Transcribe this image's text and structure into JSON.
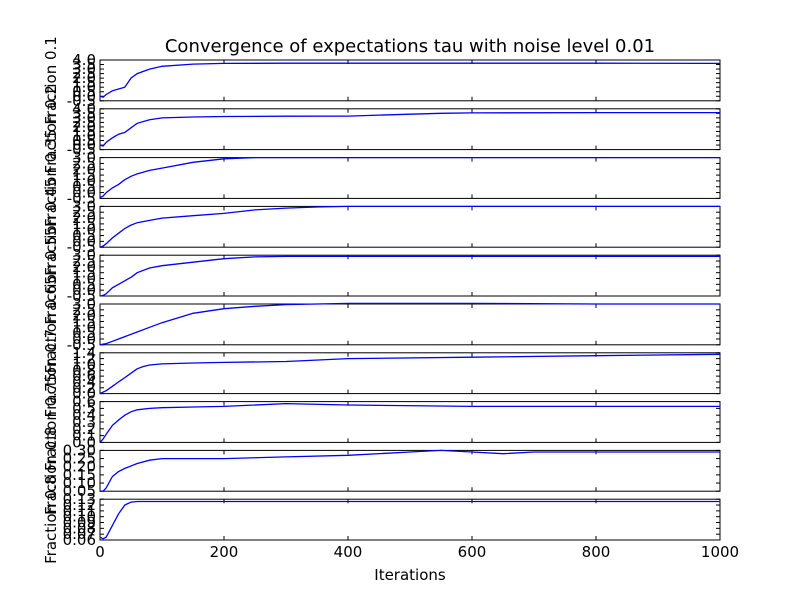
{
  "chart_data": {
    "type": "line",
    "title": "Convergence of expectations tau with noise level 0.01",
    "xlabel": "Iterations",
    "xlim": [
      0,
      1000
    ],
    "xticks": [
      "0",
      "200",
      "400",
      "600",
      "800",
      "1000"
    ],
    "line_color": "#0000ff",
    "grid": false,
    "legend": "none",
    "panels": [
      {
        "ylabel": "Fraction 0.1",
        "ylim": [
          -0.5,
          4.0
        ],
        "yticks": [
          "-0.5",
          "0.0",
          "0.5",
          "1.0",
          "1.5",
          "2.0",
          "2.5",
          "3.0",
          "3.5",
          "4.0"
        ],
        "x": [
          0,
          5,
          10,
          20,
          30,
          40,
          50,
          60,
          80,
          100,
          150,
          200,
          300,
          400,
          600,
          800,
          1000
        ],
        "y": [
          0.0,
          -0.1,
          0.2,
          0.6,
          0.8,
          1.0,
          2.0,
          2.5,
          3.0,
          3.3,
          3.55,
          3.62,
          3.65,
          3.65,
          3.65,
          3.65,
          3.62
        ]
      },
      {
        "ylabel": "Fraction 0.2",
        "ylim": [
          -0.5,
          4.0
        ],
        "yticks": [
          "-0.5",
          "0.0",
          "0.5",
          "1.0",
          "1.5",
          "2.0",
          "2.5",
          "3.0",
          "3.5",
          "4.0"
        ],
        "x": [
          0,
          5,
          10,
          20,
          30,
          40,
          50,
          60,
          80,
          100,
          150,
          200,
          300,
          400,
          450,
          500,
          550,
          600,
          800,
          1000
        ],
        "y": [
          0.0,
          -0.1,
          0.3,
          0.8,
          1.2,
          1.4,
          1.9,
          2.4,
          2.8,
          3.0,
          3.1,
          3.15,
          3.18,
          3.2,
          3.3,
          3.4,
          3.5,
          3.55,
          3.58,
          3.58
        ]
      },
      {
        "ylabel": "Fraction 0.35",
        "ylim": [
          -0.5,
          3.0
        ],
        "yticks": [
          "-0.5",
          "0.0",
          "0.5",
          "1.0",
          "1.5",
          "2.0",
          "2.5",
          "3.0"
        ],
        "x": [
          0,
          5,
          10,
          20,
          30,
          40,
          50,
          60,
          80,
          100,
          150,
          200,
          250,
          300,
          400,
          600,
          800,
          1000
        ],
        "y": [
          -0.4,
          -0.3,
          0.0,
          0.4,
          0.7,
          1.1,
          1.4,
          1.6,
          1.9,
          2.1,
          2.6,
          2.9,
          3.0,
          3.0,
          3.0,
          3.0,
          3.0,
          3.0
        ]
      },
      {
        "ylabel": "Fraction 0.45",
        "ylim": [
          -0.5,
          3.0
        ],
        "yticks": [
          "-0.5",
          "0.0",
          "0.5",
          "1.0",
          "1.5",
          "2.0",
          "2.5",
          "3.0"
        ],
        "x": [
          0,
          5,
          10,
          20,
          30,
          40,
          50,
          60,
          80,
          100,
          150,
          200,
          250,
          300,
          350,
          400,
          600,
          800,
          1000
        ],
        "y": [
          -0.5,
          -0.4,
          -0.2,
          0.3,
          0.7,
          1.1,
          1.4,
          1.6,
          1.8,
          2.0,
          2.2,
          2.4,
          2.7,
          2.85,
          2.95,
          3.0,
          3.0,
          3.0,
          3.0
        ]
      },
      {
        "ylabel": "Fraction 0.55",
        "ylim": [
          -0.5,
          3.0
        ],
        "yticks": [
          "-0.5",
          "0.0",
          "0.5",
          "1.0",
          "1.5",
          "2.0",
          "2.5",
          "3.0"
        ],
        "x": [
          0,
          5,
          10,
          20,
          30,
          40,
          50,
          60,
          80,
          100,
          150,
          200,
          250,
          300,
          400,
          600,
          800,
          1000
        ],
        "y": [
          -0.5,
          -0.45,
          -0.3,
          0.2,
          0.5,
          0.8,
          1.1,
          1.5,
          1.9,
          2.1,
          2.4,
          2.7,
          2.85,
          2.9,
          2.9,
          2.9,
          2.9,
          2.9
        ]
      },
      {
        "ylabel": "Fraction 0.65",
        "ylim": [
          -0.5,
          3.0
        ],
        "yticks": [
          "-0.5",
          "0.0",
          "0.5",
          "1.0",
          "1.5",
          "2.0",
          "2.5",
          "3.0"
        ],
        "x": [
          0,
          5,
          10,
          20,
          30,
          40,
          60,
          80,
          100,
          150,
          200,
          250,
          300,
          400,
          500,
          600,
          800,
          1000
        ],
        "y": [
          -0.5,
          -0.45,
          -0.4,
          -0.2,
          0.0,
          0.2,
          0.6,
          1.0,
          1.4,
          2.2,
          2.6,
          2.8,
          2.95,
          3.05,
          3.05,
          3.05,
          3.0,
          3.0
        ]
      },
      {
        "ylabel": "Fraction 0.7",
        "ylim": [
          0.0,
          1.4
        ],
        "yticks": [
          "0.0",
          "0.2",
          "0.4",
          "0.6",
          "0.8",
          "1.0",
          "1.2",
          "1.4"
        ],
        "x": [
          0,
          5,
          10,
          20,
          30,
          40,
          50,
          60,
          70,
          80,
          100,
          150,
          200,
          300,
          400,
          600,
          800,
          1000
        ],
        "y": [
          0.0,
          0.05,
          0.1,
          0.25,
          0.4,
          0.55,
          0.7,
          0.85,
          0.93,
          0.98,
          1.02,
          1.05,
          1.07,
          1.1,
          1.2,
          1.25,
          1.3,
          1.35
        ]
      },
      {
        "ylabel": "Fraction 0.75",
        "ylim": [
          0.0,
          0.6
        ],
        "yticks": [
          "0.0",
          "0.1",
          "0.2",
          "0.3",
          "0.4",
          "0.5",
          "0.6"
        ],
        "x": [
          0,
          5,
          10,
          20,
          30,
          40,
          50,
          60,
          80,
          100,
          150,
          200,
          300,
          400,
          600,
          800,
          1000
        ],
        "y": [
          0.0,
          0.05,
          0.12,
          0.25,
          0.33,
          0.4,
          0.45,
          0.48,
          0.5,
          0.51,
          0.52,
          0.53,
          0.57,
          0.55,
          0.53,
          0.53,
          0.53
        ]
      },
      {
        "ylabel": "Fraction 0.8",
        "ylim": [
          0.05,
          0.3
        ],
        "yticks": [
          "0.05",
          "0.10",
          "0.15",
          "0.20",
          "0.25",
          "0.30"
        ],
        "x": [
          0,
          5,
          10,
          20,
          30,
          40,
          60,
          80,
          100,
          150,
          200,
          300,
          400,
          500,
          550,
          600,
          650,
          700,
          800,
          900,
          1000
        ],
        "y": [
          0.05,
          0.05,
          0.07,
          0.14,
          0.17,
          0.19,
          0.22,
          0.24,
          0.25,
          0.25,
          0.25,
          0.26,
          0.27,
          0.29,
          0.3,
          0.29,
          0.28,
          0.29,
          0.29,
          0.29,
          0.29
        ]
      },
      {
        "ylabel": "Fraction 0.8",
        "ylim": [
          0.06,
          0.13
        ],
        "yticks": [
          "0.06",
          "0.07",
          "0.08",
          "0.09",
          "0.10",
          "0.11",
          "0.12",
          "0.13"
        ],
        "x": [
          0,
          5,
          10,
          15,
          20,
          30,
          40,
          50,
          60,
          80,
          100,
          200,
          400,
          600,
          800,
          1000
        ],
        "y": [
          0.065,
          0.062,
          0.065,
          0.075,
          0.085,
          0.105,
          0.12,
          0.125,
          0.126,
          0.126,
          0.126,
          0.126,
          0.126,
          0.126,
          0.126,
          0.126
        ]
      }
    ]
  }
}
